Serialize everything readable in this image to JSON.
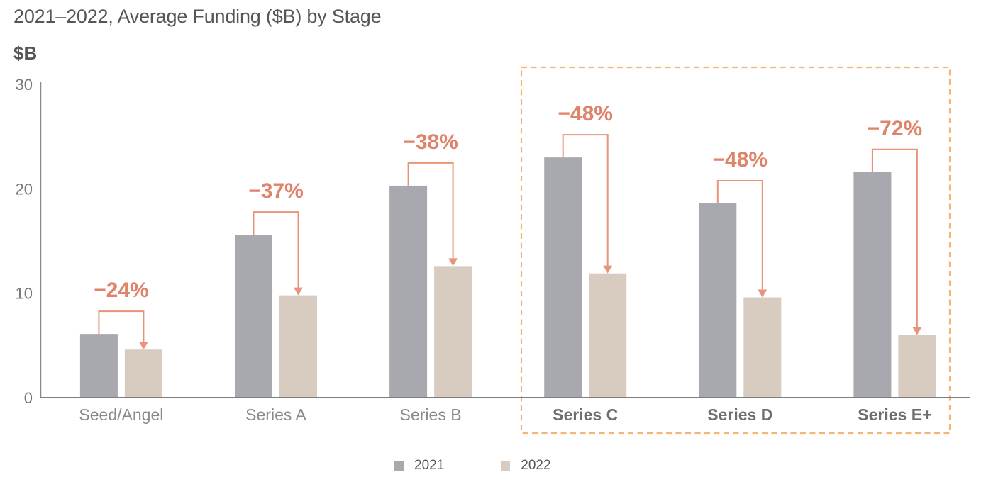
{
  "title": "2021–2022, Average Funding ($B) by Stage",
  "y_axis_unit": "$B",
  "chart_data": {
    "type": "bar",
    "title": "2021–2022, Average Funding ($B) by Stage",
    "ylabel": "$B",
    "xlabel": "",
    "ylim": [
      0,
      30
    ],
    "yticks": [
      0,
      10,
      20,
      30
    ],
    "grid": false,
    "legend_position": "bottom-center",
    "categories": [
      "Seed/Angel",
      "Series A",
      "Series B",
      "Series C",
      "Series D",
      "Series E+"
    ],
    "series": [
      {
        "name": "2021",
        "color": "#A8A8AF",
        "values": [
          6.1,
          15.6,
          20.3,
          23.0,
          18.6,
          21.6
        ]
      },
      {
        "name": "2022",
        "color": "#D8CCC0",
        "values": [
          4.6,
          9.8,
          12.6,
          11.9,
          9.6,
          6.0
        ]
      }
    ],
    "pct_change_labels": [
      "−24%",
      "−37%",
      "−38%",
      "−48%",
      "−48%",
      "−72%"
    ],
    "highlight": {
      "categories": [
        "Series C",
        "Series D",
        "Series E+"
      ],
      "box_style": "dashed",
      "box_color": "#F4B577",
      "bold_category_labels": true
    }
  },
  "legend": {
    "items": [
      {
        "label": "2021",
        "color": "#A8A8AF"
      },
      {
        "label": "2022",
        "color": "#D8CCC0"
      }
    ]
  },
  "colors": {
    "title_text": "#565659",
    "tick_text": "#77777A",
    "category_text": "#8A8A8C",
    "category_text_bold": "#6E6E70",
    "axis_line": "#8A8A8C",
    "baseline": "#7E7E80",
    "annotation_text": "#E0836B",
    "annotation_line": "#E8947A",
    "bar_2021": "#A8A8AF",
    "bar_2022": "#D8CCC0",
    "highlight_box": "#F4B577"
  }
}
